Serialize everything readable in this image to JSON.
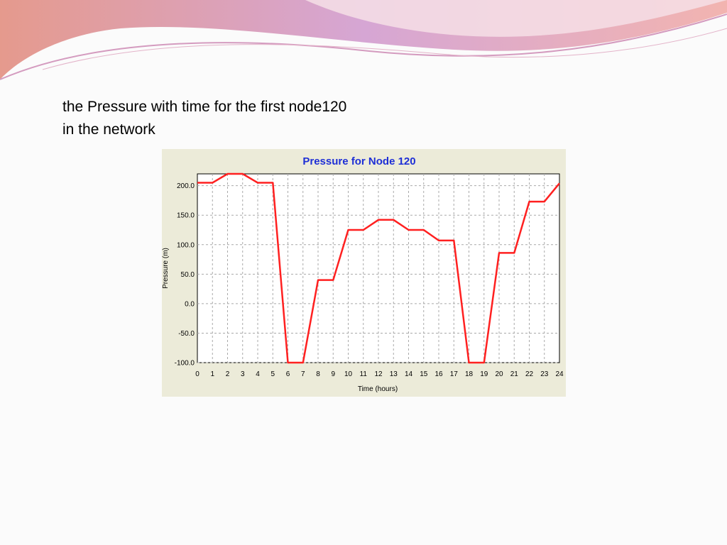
{
  "slide": {
    "text_line1": "the Pressure with time for the first node120",
    "text_line2": "in the network"
  },
  "colors": {
    "series": "#ff2020",
    "title": "#1e2fd6",
    "panel": "#ecebd9",
    "grid": "#a9a9a9"
  },
  "chart_data": {
    "type": "line",
    "title": "Pressure for Node 120",
    "xlabel": "Time (hours)",
    "ylabel": "Pressure (m)",
    "xlim": [
      0,
      24
    ],
    "ylim": [
      -100,
      220
    ],
    "grid": true,
    "x_ticks": [
      "0",
      "1",
      "2",
      "3",
      "4",
      "5",
      "6",
      "7",
      "8",
      "9",
      "10",
      "11",
      "12",
      "13",
      "14",
      "15",
      "16",
      "17",
      "18",
      "19",
      "20",
      "21",
      "22",
      "23",
      "24"
    ],
    "y_ticks": [
      "200.0",
      "150.0",
      "100.0",
      "50.0",
      "0.0",
      "-50.0",
      "-100.0"
    ],
    "series": [
      {
        "x": [
          0,
          1,
          2,
          3,
          4,
          5,
          6,
          7,
          8,
          9,
          10,
          11,
          12,
          13,
          14,
          15,
          16,
          17,
          18,
          19,
          20,
          21,
          22,
          23,
          24
        ],
        "y": [
          205,
          205,
          220,
          220,
          205,
          205,
          -100,
          -100,
          40,
          40,
          125,
          125,
          142,
          142,
          125,
          125,
          107,
          107,
          -100,
          -100,
          86,
          86,
          173,
          173,
          204
        ]
      }
    ]
  }
}
